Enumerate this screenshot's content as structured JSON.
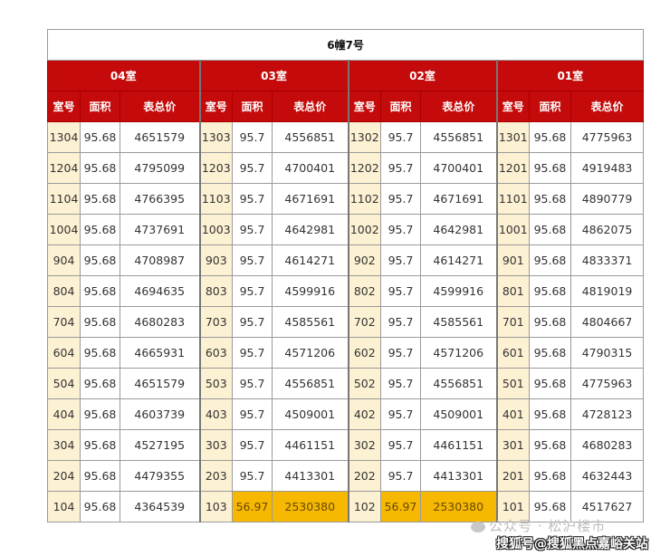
{
  "title": "6幢7号",
  "columns": [
    "室号",
    "面积",
    "表总价"
  ],
  "colors": {
    "header_red": "#c40a0a",
    "room_col": "#fdf1d3",
    "highlight": "#f6b800"
  },
  "groups": [
    {
      "label": "04室",
      "rows": [
        [
          "1304",
          "95.68",
          "4651579"
        ],
        [
          "1204",
          "95.68",
          "4795099"
        ],
        [
          "1104",
          "95.68",
          "4766395"
        ],
        [
          "1004",
          "95.68",
          "4737691"
        ],
        [
          "904",
          "95.68",
          "4708987"
        ],
        [
          "804",
          "95.68",
          "4694635"
        ],
        [
          "704",
          "95.68",
          "4680283"
        ],
        [
          "604",
          "95.68",
          "4665931"
        ],
        [
          "504",
          "95.68",
          "4651579"
        ],
        [
          "404",
          "95.68",
          "4603739"
        ],
        [
          "304",
          "95.68",
          "4527195"
        ],
        [
          "204",
          "95.68",
          "4479355"
        ],
        [
          "104",
          "95.68",
          "4364539"
        ]
      ]
    },
    {
      "label": "03室",
      "highlight_rows": [
        12
      ],
      "rows": [
        [
          "1303",
          "95.7",
          "4556851"
        ],
        [
          "1203",
          "95.7",
          "4700401"
        ],
        [
          "1103",
          "95.7",
          "4671691"
        ],
        [
          "1003",
          "95.7",
          "4642981"
        ],
        [
          "903",
          "95.7",
          "4614271"
        ],
        [
          "803",
          "95.7",
          "4599916"
        ],
        [
          "703",
          "95.7",
          "4585561"
        ],
        [
          "603",
          "95.7",
          "4571206"
        ],
        [
          "503",
          "95.7",
          "4556851"
        ],
        [
          "403",
          "95.7",
          "4509001"
        ],
        [
          "303",
          "95.7",
          "4461151"
        ],
        [
          "203",
          "95.7",
          "4413301"
        ],
        [
          "103",
          "56.97",
          "2530380"
        ]
      ]
    },
    {
      "label": "02室",
      "highlight_rows": [
        12
      ],
      "rows": [
        [
          "1302",
          "95.7",
          "4556851"
        ],
        [
          "1202",
          "95.7",
          "4700401"
        ],
        [
          "1102",
          "95.7",
          "4671691"
        ],
        [
          "1002",
          "95.7",
          "4642981"
        ],
        [
          "902",
          "95.7",
          "4614271"
        ],
        [
          "802",
          "95.7",
          "4599916"
        ],
        [
          "702",
          "95.7",
          "4585561"
        ],
        [
          "602",
          "95.7",
          "4571206"
        ],
        [
          "502",
          "95.7",
          "4556851"
        ],
        [
          "402",
          "95.7",
          "4509001"
        ],
        [
          "302",
          "95.7",
          "4461151"
        ],
        [
          "202",
          "95.7",
          "4413301"
        ],
        [
          "102",
          "56.97",
          "2530380"
        ]
      ]
    },
    {
      "label": "01室",
      "rows": [
        [
          "1301",
          "95.68",
          "4775963"
        ],
        [
          "1201",
          "95.68",
          "4919483"
        ],
        [
          "1101",
          "95.68",
          "4890779"
        ],
        [
          "1001",
          "95.68",
          "4862075"
        ],
        [
          "901",
          "95.68",
          "4833371"
        ],
        [
          "801",
          "95.68",
          "4819019"
        ],
        [
          "701",
          "95.68",
          "4804667"
        ],
        [
          "601",
          "95.68",
          "4790315"
        ],
        [
          "501",
          "95.68",
          "4775963"
        ],
        [
          "401",
          "95.68",
          "4728123"
        ],
        [
          "301",
          "95.68",
          "4680283"
        ],
        [
          "201",
          "95.68",
          "4632443"
        ],
        [
          "101",
          "95.68",
          "4517627"
        ]
      ]
    }
  ],
  "watermark": {
    "line1": "公众号 · 松沪楼市",
    "line2": "搜狐号@搜狐黑点嘉峪关站",
    "icon": "wechat-icon"
  }
}
